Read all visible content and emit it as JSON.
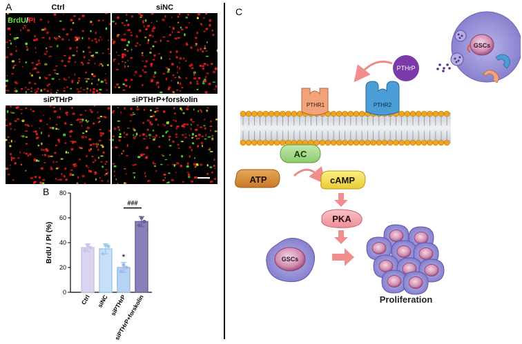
{
  "panels": {
    "a": "A",
    "b": "B",
    "c": "C"
  },
  "micrographs": {
    "stain_green": "BrdU",
    "stain_slash": "/",
    "stain_red": "PI",
    "titles": [
      "Ctrl",
      "siNC",
      "siPTHrP",
      "siPTHrP+forskolin"
    ],
    "colors": {
      "green": "#5be33a",
      "red": "#e8201c",
      "yellow": "#d9e02a"
    }
  },
  "chart_data": {
    "type": "bar",
    "categories": [
      "Ctrl",
      "siNC",
      "siPTHrP",
      "siPTHrP+forskolin"
    ],
    "values": [
      36,
      35,
      20,
      57
    ],
    "error": [
      3,
      4,
      4,
      4
    ],
    "points": [
      [
        34,
        38,
        36
      ],
      [
        31,
        38,
        37
      ],
      [
        17,
        22,
        20
      ],
      [
        54,
        60,
        57
      ]
    ],
    "ylabel": "BrdU / PI (%)",
    "ylim": [
      0,
      80
    ],
    "yticks": [
      0,
      20,
      40,
      60,
      80
    ],
    "annotations": {
      "siPTHrP": "*",
      "bracket": "###"
    },
    "colors": [
      "#d9d5ee",
      "#c7e0f6",
      "#b7d3f4",
      "#8b80b6"
    ],
    "edge_colors": [
      "#c9c2ea",
      "#9cc9ee",
      "#9dbde9",
      "#6d5f9b"
    ],
    "grid": false
  },
  "scheme": {
    "ligand": "PTHrP",
    "receptor1": "PTHR1",
    "receptor2": "PTHR2",
    "cell_label": "GSCs",
    "ac": "AC",
    "atp": "ATP",
    "camp": "cAMP",
    "pka": "PKA",
    "proliferation": "Proliferation",
    "colors": {
      "ligand": "#7b3aa8",
      "receptor1": "#f2a37a",
      "receptor2": "#4b9dd6",
      "membrane_head": "#f0a51c",
      "ac": "#a6d88a",
      "atp": "#d98f3c",
      "camp": "#f6e25a",
      "pka": "#f4a6ad",
      "arrow": "#f28d8d",
      "cell_body": "#8f88d6",
      "nucleus": "#c07aa0"
    }
  }
}
